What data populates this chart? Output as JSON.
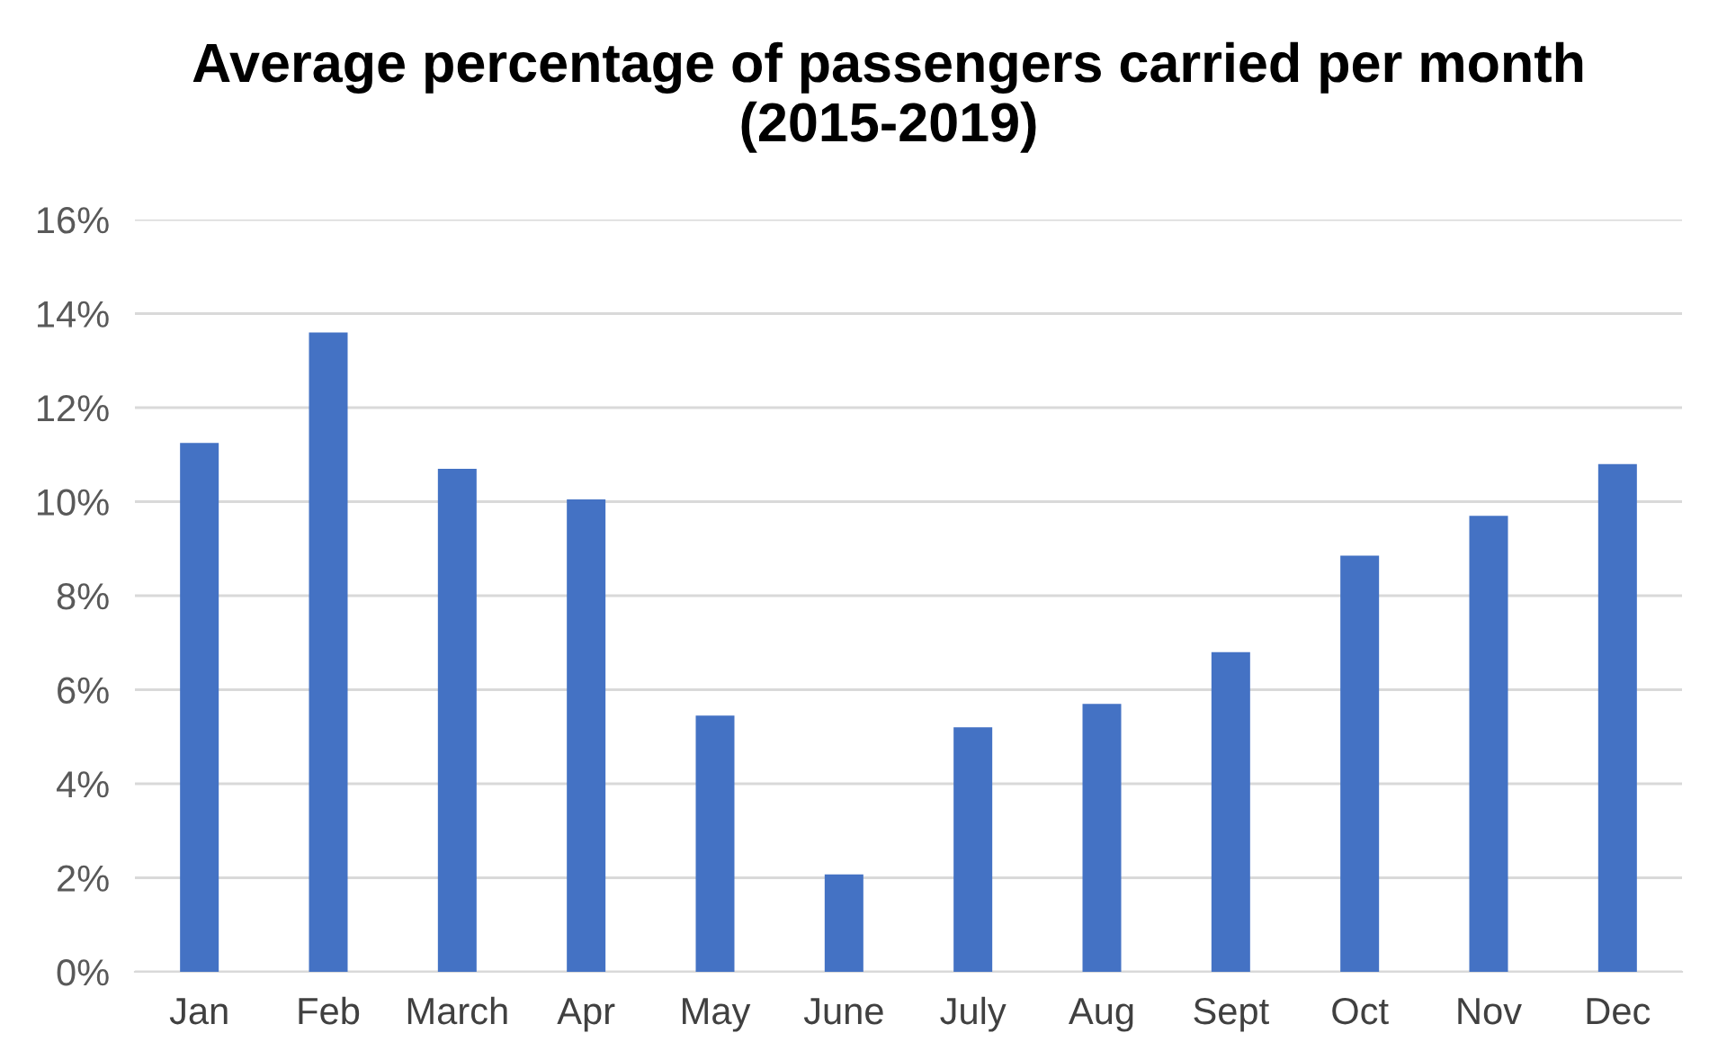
{
  "chart_data": {
    "type": "bar",
    "title": "Average percentage of passengers carried per month (2015-2019)",
    "categories": [
      "Jan",
      "Feb",
      "March",
      "Apr",
      "May",
      "June",
      "July",
      "Aug",
      "Sept",
      "Oct",
      "Nov",
      "Dec"
    ],
    "values": [
      11.25,
      13.6,
      10.7,
      10.05,
      5.45,
      2.07,
      5.2,
      5.7,
      6.8,
      8.85,
      9.7,
      10.8
    ],
    "color": "#4472c4",
    "ylim": [
      0,
      16
    ],
    "yticks": [
      {
        "value": 0,
        "label": "0%"
      },
      {
        "value": 2,
        "label": "2%"
      },
      {
        "value": 4,
        "label": "4%"
      },
      {
        "value": 6,
        "label": "6%"
      },
      {
        "value": 8,
        "label": "8%"
      },
      {
        "value": 10,
        "label": "10%"
      },
      {
        "value": 12,
        "label": "12%"
      },
      {
        "value": 14,
        "label": "14%"
      },
      {
        "value": 16,
        "label": "16%"
      }
    ],
    "grid": "y"
  }
}
